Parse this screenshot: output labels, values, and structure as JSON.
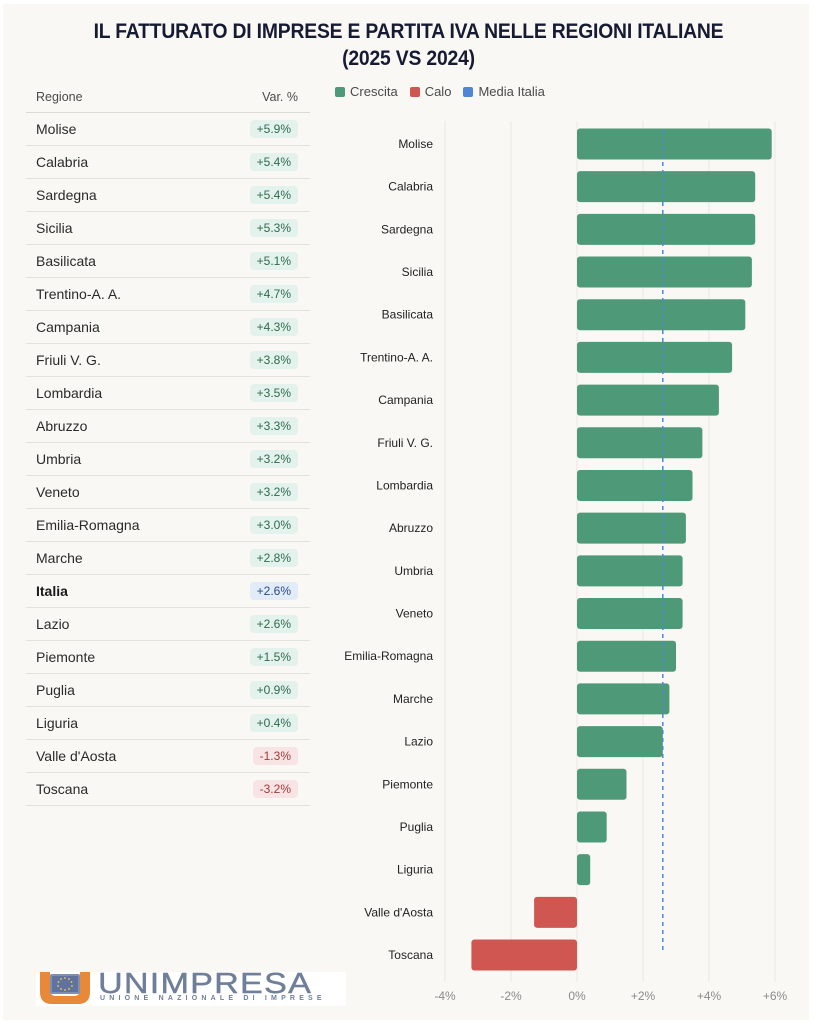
{
  "title": {
    "line1": "IL FATTURATO DI IMPRESE E PARTITA IVA NELLE REGIONI ITALIANE",
    "line2": "(2025 VS 2024)"
  },
  "table": {
    "headers": {
      "region": "Regione",
      "variation": "Var. %"
    },
    "rows": [
      {
        "region": "Molise",
        "value": "+5.9%",
        "status": "pos"
      },
      {
        "region": "Calabria",
        "value": "+5.4%",
        "status": "pos"
      },
      {
        "region": "Sardegna",
        "value": "+5.4%",
        "status": "pos"
      },
      {
        "region": "Sicilia",
        "value": "+5.3%",
        "status": "pos"
      },
      {
        "region": "Basilicata",
        "value": "+5.1%",
        "status": "pos"
      },
      {
        "region": "Trentino-A. A.",
        "value": "+4.7%",
        "status": "pos"
      },
      {
        "region": "Campania",
        "value": "+4.3%",
        "status": "pos"
      },
      {
        "region": "Friuli V. G.",
        "value": "+3.8%",
        "status": "pos"
      },
      {
        "region": "Lombardia",
        "value": "+3.5%",
        "status": "pos"
      },
      {
        "region": "Abruzzo",
        "value": "+3.3%",
        "status": "pos"
      },
      {
        "region": "Umbria",
        "value": "+3.2%",
        "status": "pos"
      },
      {
        "region": "Veneto",
        "value": "+3.2%",
        "status": "pos"
      },
      {
        "region": "Emilia-Romagna",
        "value": "+3.0%",
        "status": "pos"
      },
      {
        "region": "Marche",
        "value": "+2.8%",
        "status": "pos"
      },
      {
        "region": "Italia",
        "value": "+2.6%",
        "status": "avg"
      },
      {
        "region": "Lazio",
        "value": "+2.6%",
        "status": "pos"
      },
      {
        "region": "Piemonte",
        "value": "+1.5%",
        "status": "pos"
      },
      {
        "region": "Puglia",
        "value": "+0.9%",
        "status": "pos"
      },
      {
        "region": "Liguria",
        "value": "+0.4%",
        "status": "pos"
      },
      {
        "region": "Valle d'Aosta",
        "value": "-1.3%",
        "status": "neg"
      },
      {
        "region": "Toscana",
        "value": "-3.2%",
        "status": "neg"
      }
    ]
  },
  "legend": [
    {
      "label": "Crescita",
      "color": "#4e9a78"
    },
    {
      "label": "Calo",
      "color": "#d05652"
    },
    {
      "label": "Media Italia",
      "color": "#4f86d6"
    }
  ],
  "colors": {
    "growth": "#4e9a78",
    "decline": "#d05652",
    "average": "#4f86d6",
    "grid": "#ebe9e4"
  },
  "logo": {
    "name": "UNIMPRESA",
    "subtitle": "UNIONE NAZIONALE DI IMPRESE"
  },
  "chart_data": {
    "type": "bar",
    "orientation": "horizontal",
    "title": "IL FATTURATO DI IMPRESE E PARTITA IVA NELLE REGIONI ITALIANE (2025 VS 2024)",
    "xlabel": "",
    "ylabel": "",
    "categories": [
      "Molise",
      "Calabria",
      "Sardegna",
      "Sicilia",
      "Basilicata",
      "Trentino-A. A.",
      "Campania",
      "Friuli V. G.",
      "Lombardia",
      "Abruzzo",
      "Umbria",
      "Veneto",
      "Emilia-Romagna",
      "Marche",
      "Lazio",
      "Piemonte",
      "Puglia",
      "Liguria",
      "Valle d'Aosta",
      "Toscana"
    ],
    "values": [
      5.9,
      5.4,
      5.4,
      5.3,
      5.1,
      4.7,
      4.3,
      3.8,
      3.5,
      3.3,
      3.2,
      3.2,
      3.0,
      2.8,
      2.6,
      1.5,
      0.9,
      0.4,
      -1.3,
      -3.2
    ],
    "reference_line": {
      "label": "Media Italia",
      "value": 2.6
    },
    "xlim": [
      -4,
      6
    ],
    "xticks": [
      -4,
      -2,
      0,
      2,
      4,
      6
    ],
    "xtick_labels": [
      "-4%",
      "-2%",
      "0%",
      "+2%",
      "+4%",
      "+6%"
    ],
    "grid": true,
    "legend": [
      "Crescita",
      "Calo",
      "Media Italia"
    ],
    "legend_position": "top-left"
  }
}
